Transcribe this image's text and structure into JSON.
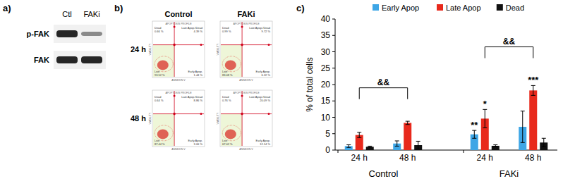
{
  "panel_a": {
    "panel_label": "a)",
    "lanes": [
      "Ctl",
      "FAKi"
    ],
    "rows": [
      "p-FAK",
      "FAK"
    ]
  },
  "panel_b": {
    "panel_label": "b)",
    "columns": [
      "Control",
      "FAKi"
    ],
    "rows": [
      "24 h",
      "48 h"
    ],
    "plot_title": "APOPTOSIS PROFILE",
    "x_label": "ANNEXIN V",
    "y_label": "VIABILITY",
    "quadrant_names": [
      "Dead",
      "Late Apop./Dead",
      "Live",
      "Early Apop."
    ],
    "plots": [
      [
        {
          "dead": "0.66 %",
          "late": "4.39 %",
          "live": "93.52 %",
          "early": "1.44 %"
        },
        {
          "dead": "0.99 %",
          "late": "9.72 %",
          "live": "83.08 %",
          "early": "6.22 %"
        }
      ],
      [
        {
          "dead": "0.64 %",
          "late": "8.86 %",
          "live": "87.44 %",
          "early": "3.06 %"
        },
        {
          "dead": "0.76 %",
          "late": "20.09 %",
          "live": "67.02 %",
          "early": "12.14 %"
        }
      ]
    ]
  },
  "chart_data": {
    "type": "bar",
    "panel_label": "c)",
    "y_label": "% of total cells",
    "categories": [
      "24 h",
      "48 h",
      "24 h",
      "48 h"
    ],
    "groups": [
      {
        "label": "Control",
        "span": [
          0,
          1
        ]
      },
      {
        "label": "FAKi",
        "span": [
          2,
          3
        ]
      }
    ],
    "series": [
      {
        "name": "Early Apop",
        "color": "#3ea6e6",
        "values": [
          1.2,
          2.0,
          4.8,
          7.1
        ],
        "errors": [
          0.4,
          0.8,
          1.2,
          4.8
        ]
      },
      {
        "name": "Late Apop",
        "color": "#e8291c",
        "values": [
          4.6,
          8.3,
          9.6,
          18.2
        ],
        "errors": [
          0.8,
          0.5,
          2.8,
          1.5
        ]
      },
      {
        "name": "Dead",
        "color": "#111111",
        "values": [
          1.0,
          1.5,
          1.3,
          2.3
        ],
        "errors": [
          0.2,
          1.2,
          0.3,
          1.3
        ]
      }
    ],
    "annotations": [
      {
        "text": "**",
        "category": 2,
        "series": "Early Apop"
      },
      {
        "text": "*",
        "category": 2,
        "series": "Late Apop"
      },
      {
        "text": "***",
        "category": 3,
        "series": "Late Apop"
      }
    ],
    "brackets": [
      {
        "text": "&&",
        "from": 0,
        "to": 1,
        "series": "Late Apop",
        "y": 19
      },
      {
        "text": "&&",
        "from": 2,
        "to": 3,
        "series": "Late Apop",
        "y": 31.5
      }
    ],
    "ylim": [
      0,
      40
    ],
    "yticks": [
      0,
      5,
      10,
      15,
      20,
      25,
      30,
      35,
      40
    ],
    "grid": false,
    "legend": "top"
  }
}
